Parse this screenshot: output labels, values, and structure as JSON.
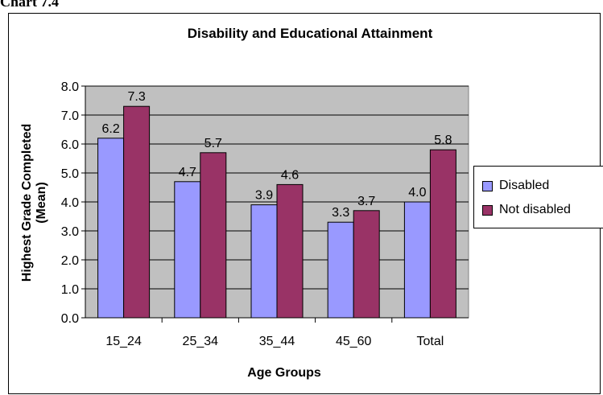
{
  "page": {
    "heading": "Chart 7.4"
  },
  "chart_data": {
    "type": "bar",
    "title": "Disability and Educational Attainment",
    "xlabel": "Age Groups",
    "ylabel_line1": "Highest Grade Completed",
    "ylabel_line2": "(Mean)",
    "categories": [
      "15_24",
      "25_34",
      "35_44",
      "45_60",
      "Total"
    ],
    "series": [
      {
        "name": "Disabled",
        "color": "#9999ff",
        "values": [
          6.2,
          4.7,
          3.9,
          3.3,
          4.0
        ],
        "labels": [
          "6.2",
          "4.7",
          "3.9",
          "3.3",
          "4.0"
        ]
      },
      {
        "name": "Not disabled",
        "color": "#993366",
        "values": [
          7.3,
          5.7,
          4.6,
          3.7,
          5.8
        ],
        "labels": [
          "7.3",
          "5.7",
          "4.6",
          "3.7",
          "5.8"
        ]
      }
    ],
    "ylim": [
      0,
      8
    ],
    "yticks": [
      "0.0",
      "1.0",
      "2.0",
      "3.0",
      "4.0",
      "5.0",
      "6.0",
      "7.0",
      "8.0"
    ],
    "grid": true,
    "plot_background": "#c0c0c0",
    "legend_position": "right"
  }
}
